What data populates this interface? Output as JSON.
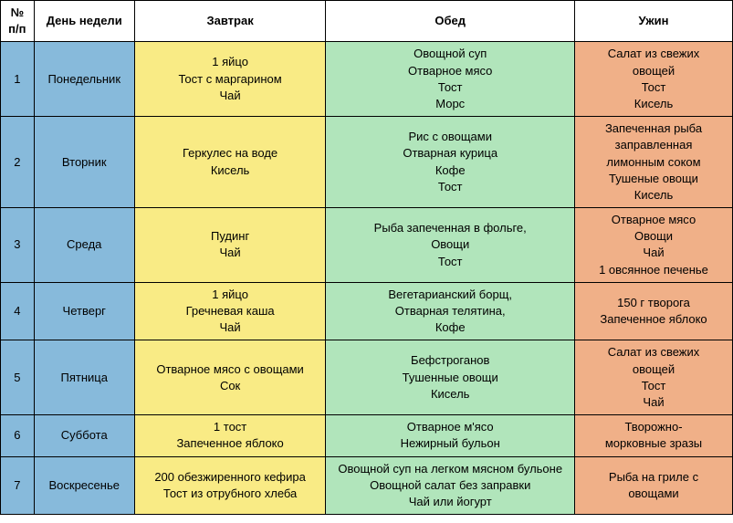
{
  "headers": {
    "num": "№\nп/п",
    "day": "День недели",
    "breakfast": "Завтрак",
    "lunch": "Обед",
    "dinner": "Ужин"
  },
  "colors": {
    "num_bg": "#87badb",
    "day_bg": "#87badb",
    "breakfast_bg": "#f9eb85",
    "lunch_bg": "#b1e5bb",
    "dinner_bg": "#f0b088",
    "border": "#000000",
    "header_bg": "#ffffff"
  },
  "rows": [
    {
      "num": "1",
      "day": "Понедельник",
      "breakfast": "1 яйцо\nТост с маргарином\nЧай",
      "lunch": "Овощной суп\nОтварное мясо\nТост\nМорс",
      "dinner": "Салат из свежих\nовощей\nТост\nКисель"
    },
    {
      "num": "2",
      "day": "Вторник",
      "breakfast": "Геркулес на воде\nКисель",
      "lunch": "Рис с овощами\nОтварная курица\nКофе\nТост",
      "dinner": "Запеченная рыба\nзаправленная\nлимонным соком\nТушеные овощи\nКисель"
    },
    {
      "num": "3",
      "day": "Среда",
      "breakfast": "Пудинг\nЧай",
      "lunch": "Рыба запеченная в фольге,\nОвощи\nТост",
      "dinner": "Отварное мясо\nОвощи\nЧай\n1 овсянное печенье"
    },
    {
      "num": "4",
      "day": "Четверг",
      "breakfast": "1 яйцо\nГречневая каша\nЧай",
      "lunch": "Вегетарианский борщ,\nОтварная телятина,\nКофе",
      "dinner": "150 г творога\nЗапеченное яблоко"
    },
    {
      "num": "5",
      "day": "Пятница",
      "breakfast": "Отварное мясо с овощами\nСок",
      "lunch": "Бефстроганов\nТушенные овощи\nКисель",
      "dinner": "Салат из свежих\nовощей\nТост\nЧай"
    },
    {
      "num": "6",
      "day": "Суббота",
      "breakfast": "1 тост\nЗапеченное яблоко",
      "lunch": "Отварное м'ясо\nНежирный бульон",
      "dinner": "Творожно-\nморковные зразы"
    },
    {
      "num": "7",
      "day": "Воскресенье",
      "breakfast": "200 обезжиренного кефира\nТост из отрубного хлеба",
      "lunch": "Овощной суп на легком мясном бульоне\nОвощной салат без заправки\nЧай или йогурт",
      "dinner": "Рыба на гриле с\nовощами"
    }
  ]
}
